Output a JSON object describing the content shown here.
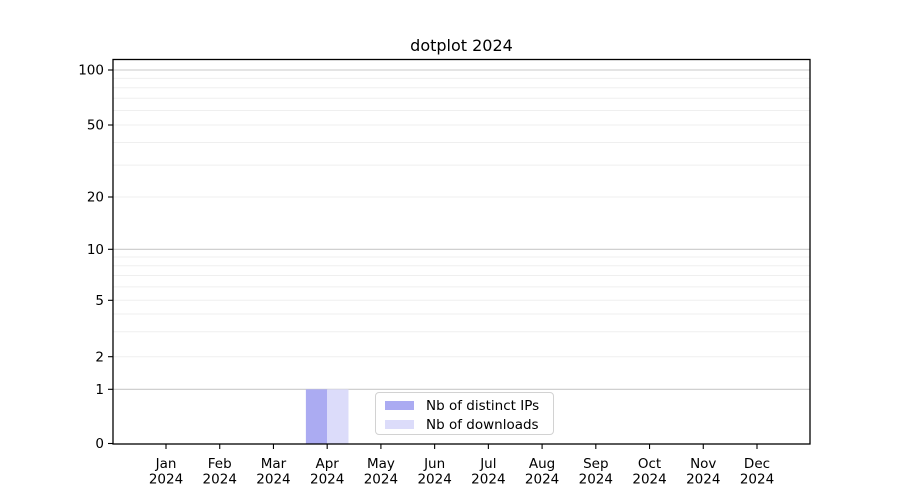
{
  "chart_data": {
    "type": "bar",
    "title": "dotplot 2024",
    "x": {
      "months": [
        "Jan",
        "Feb",
        "Mar",
        "Apr",
        "May",
        "Jun",
        "Jul",
        "Aug",
        "Sep",
        "Oct",
        "Nov",
        "Dec"
      ],
      "year": "2024"
    },
    "y_ticks": [
      0,
      1,
      2,
      5,
      10,
      20,
      50,
      100
    ],
    "yscale": "symlog",
    "ylim": [
      0,
      107
    ],
    "grid": {
      "horizontal_major": true,
      "horizontal_minor": true,
      "vertical": false
    },
    "legend": {
      "position": "inside-bottom-center"
    },
    "series": [
      {
        "name": "Nb of distinct IPs",
        "color": "#ababf2",
        "values": [
          0,
          0,
          0,
          1,
          0,
          0,
          0,
          0,
          0,
          0,
          0,
          0
        ]
      },
      {
        "name": "Nb of downloads",
        "color": "#dcdcfa",
        "values": [
          0,
          0,
          0,
          1,
          0,
          0,
          0,
          0,
          0,
          0,
          0,
          0
        ]
      }
    ],
    "colors": {
      "major_grid": "#c9c9c9",
      "minor_grid": "#efefef",
      "axis": "#000000",
      "text": "#000000",
      "background": "#ffffff",
      "legend_border": "#d2d2d2"
    }
  }
}
